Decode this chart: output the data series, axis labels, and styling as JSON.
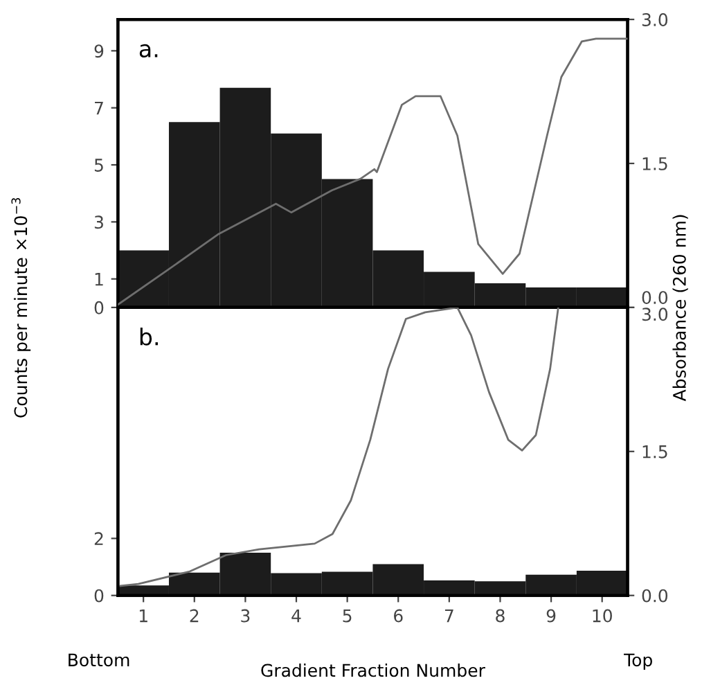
{
  "chart_data": [
    {
      "type": "bar",
      "x": [
        1,
        2,
        3,
        4,
        5,
        6,
        7,
        8,
        9,
        10
      ],
      "xlim": [
        0.5,
        10.5
      ],
      "ylim": [
        0,
        10.1
      ],
      "yticks": [
        0,
        1,
        3,
        5,
        7,
        9
      ],
      "y2lim": [
        0,
        3.0
      ],
      "y2ticks": [
        {
          "value": 0,
          "label": "0.0"
        },
        {
          "value": 1.5,
          "label": "1.5"
        },
        {
          "value": 3.0,
          "label": "3.0"
        }
      ],
      "grid": false,
      "legend": false,
      "annotations": [
        "a."
      ],
      "series": [
        {
          "color": "#1c1c1c",
          "values": [
            2.0,
            6.5,
            7.7,
            6.1,
            4.5,
            2.0,
            1.25,
            0.85,
            0.7,
            0.7
          ]
        },
        {
          "type": "line",
          "axis": "y2",
          "color": "#6e6e6e",
          "x": [
            0.5,
            1.45,
            2.46,
            3.6,
            3.9,
            4.7,
            5.26,
            5.53,
            5.58,
            6.07,
            6.34,
            6.83,
            7.16,
            7.57,
            8.05,
            8.38,
            8.92,
            9.2,
            9.6,
            9.88,
            10.5
          ],
          "values": [
            0.03,
            0.38,
            0.76,
            1.08,
            0.99,
            1.22,
            1.34,
            1.44,
            1.41,
            2.11,
            2.2,
            2.2,
            1.79,
            0.66,
            0.35,
            0.56,
            1.79,
            2.4,
            2.77,
            2.8,
            2.8
          ]
        }
      ]
    },
    {
      "type": "bar",
      "x": [
        1,
        2,
        3,
        4,
        5,
        6,
        7,
        8,
        9,
        10
      ],
      "xlim": [
        0.5,
        10.5
      ],
      "xticks": [
        1,
        2,
        3,
        4,
        5,
        6,
        7,
        8,
        9,
        10
      ],
      "ylim": [
        0,
        10.1
      ],
      "yticks": [
        0,
        2
      ],
      "y2lim": [
        0,
        3.0
      ],
      "y2ticks": [
        {
          "value": 0,
          "label": "0.0"
        },
        {
          "value": 1.5,
          "label": "1.5"
        },
        {
          "value": 3.0,
          "label": "3.0"
        }
      ],
      "grid": false,
      "legend": false,
      "xlabel": "Gradient Fraction Number",
      "ylabel": "Counts per minute ×10$^{−3}$",
      "y2label": "Absorbance (260 nm)",
      "annotations": [
        "b.",
        "Bottom",
        "Top"
      ],
      "series": [
        {
          "color": "#1c1c1c",
          "values": [
            0.35,
            0.8,
            1.5,
            0.78,
            0.83,
            1.1,
            0.53,
            0.5,
            0.73,
            0.87
          ]
        },
        {
          "type": "line",
          "axis": "y2",
          "color": "#6e6e6e",
          "x": [
            0.55,
            0.9,
            1.91,
            2.62,
            3.27,
            4.36,
            4.71,
            5.07,
            5.45,
            5.8,
            6.15,
            6.53,
            7.16,
            7.43,
            7.78,
            8.16,
            8.43,
            8.7,
            8.98,
            9.14
          ],
          "values": [
            0.1,
            0.12,
            0.25,
            0.42,
            0.48,
            0.54,
            0.64,
            0.99,
            1.62,
            2.36,
            2.88,
            2.95,
            3.0,
            2.71,
            2.12,
            1.62,
            1.51,
            1.67,
            2.36,
            3.0
          ]
        }
      ]
    }
  ]
}
